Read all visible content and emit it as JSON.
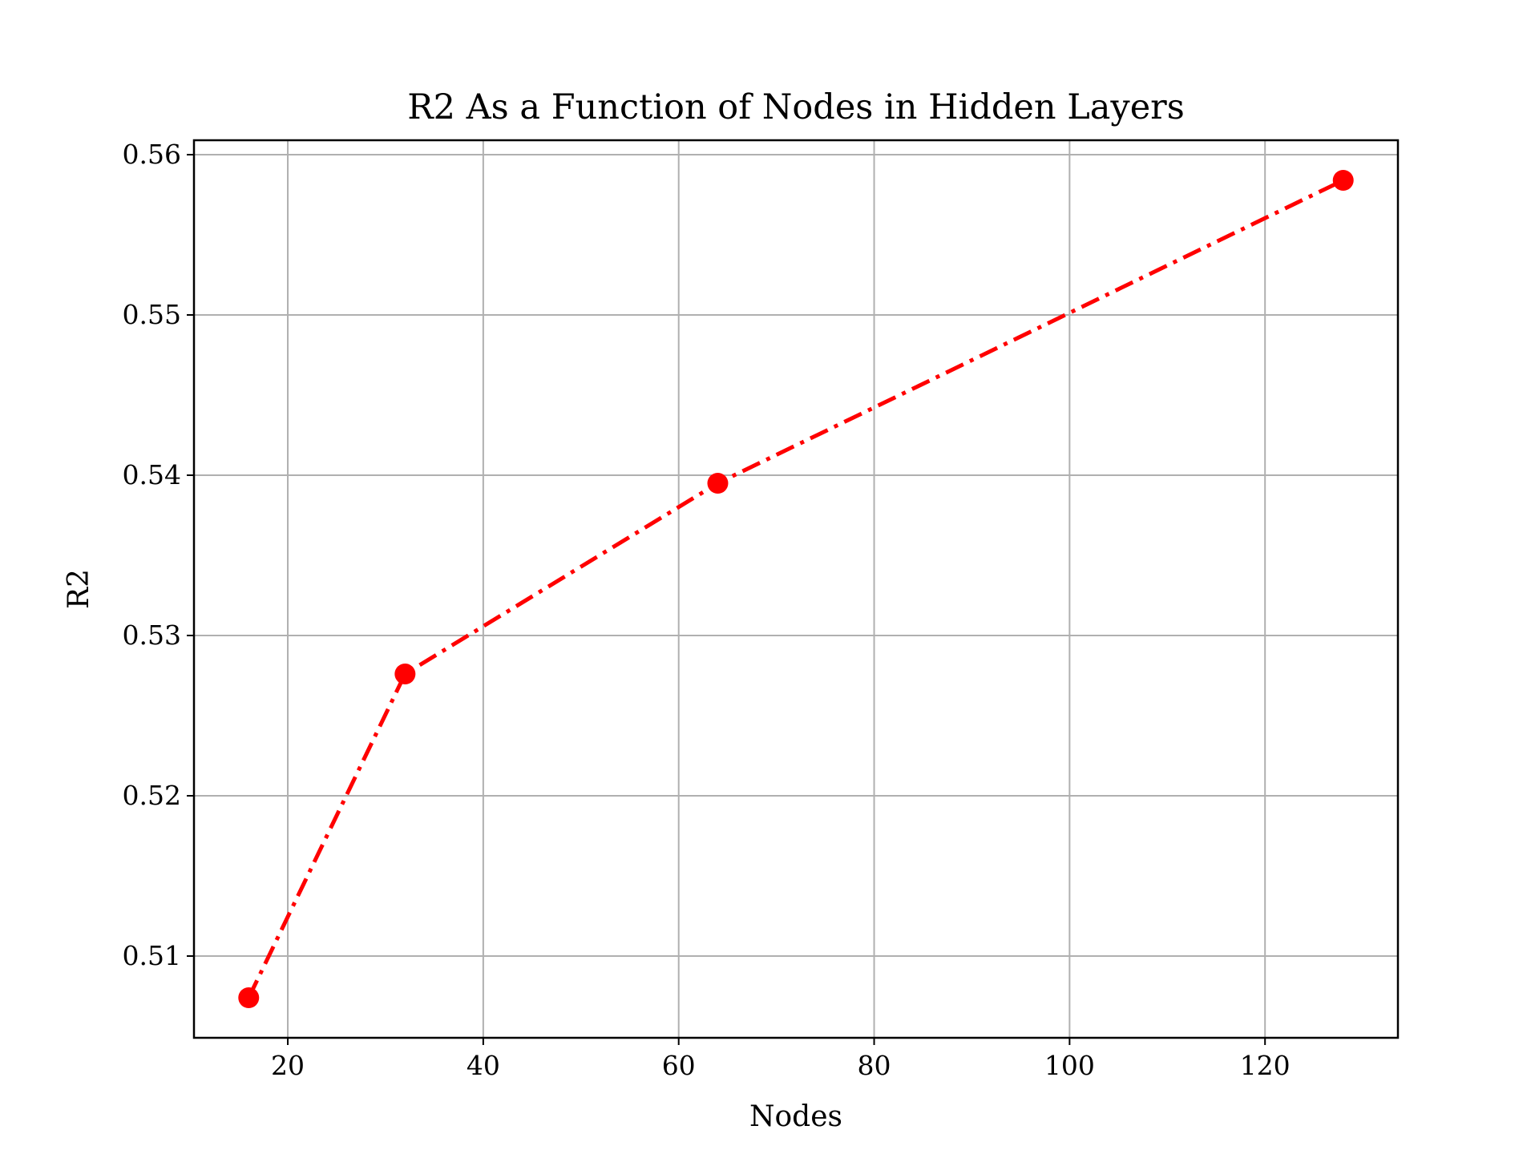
{
  "chart_data": {
    "type": "line",
    "title": "R2 As a Function of Nodes in Hidden Layers",
    "xlabel": "Nodes",
    "ylabel": "R2",
    "xlim": [
      10.4,
      133.6
    ],
    "ylim": [
      0.5049,
      0.5609
    ],
    "x_ticks": [
      20,
      40,
      60,
      80,
      100,
      120
    ],
    "y_ticks": [
      0.51,
      0.52,
      0.53,
      0.54,
      0.55,
      0.56
    ],
    "x_tick_labels": [
      "20",
      "40",
      "60",
      "80",
      "100",
      "120"
    ],
    "y_tick_labels": [
      "0.51",
      "0.52",
      "0.53",
      "0.54",
      "0.55",
      "0.56"
    ],
    "grid": true,
    "series": [
      {
        "x": [
          16,
          32,
          64,
          128
        ],
        "y": [
          0.5074,
          0.5276,
          0.5395,
          0.5584
        ],
        "color": "#ff0000",
        "line_style": "dash-dot",
        "marker": "circle"
      }
    ]
  }
}
